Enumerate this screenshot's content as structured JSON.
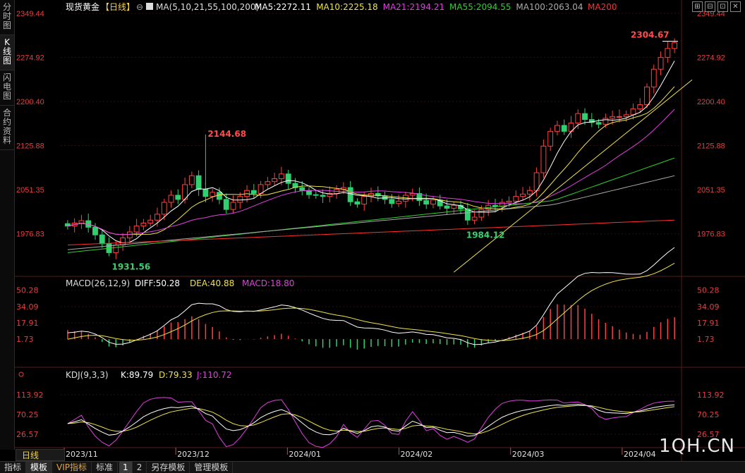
{
  "side_tabs": [
    "分时图",
    "K线图",
    "闪电图",
    "合约资料"
  ],
  "active_side_tab": 1,
  "window_tools": [
    "⊞",
    "⊟",
    "⊡",
    "✕"
  ],
  "header": {
    "symbol": "现货黄金",
    "period": "【日线】",
    "ma_params": "MA(5,10,21,55,100,200)",
    "ma_items": [
      {
        "label": "MA5:2272.11",
        "color": "#ffffff"
      },
      {
        "label": "MA10:2225.18",
        "color": "#f0e24a"
      },
      {
        "label": "MA21:2194.21",
        "color": "#e040e0"
      },
      {
        "label": "MA55:2094.55",
        "color": "#30d030"
      },
      {
        "label": "MA100:2063.04",
        "color": "#aaaaaa"
      },
      {
        "label": "MA200",
        "color": "#ff3030"
      }
    ]
  },
  "price_axis": [
    "2349.44",
    "2274.92",
    "2200.40",
    "2125.88",
    "2051.35",
    "1976.83"
  ],
  "price_annotations": [
    {
      "label": "2304.67",
      "color": "#ff4d4d"
    },
    {
      "label": "2144.68",
      "color": "#ff4d4d"
    },
    {
      "label": "1984.12",
      "color": "#3cd070"
    },
    {
      "label": "1931.56",
      "color": "#3cd070"
    }
  ],
  "macd": {
    "title": "MACD(26,12,9)",
    "diff": "DIFF:50.28",
    "dea": "DEA:40.88",
    "macd": "MACD:18.80",
    "axis": [
      "50.28",
      "34.09",
      "17.91",
      "1.73"
    ]
  },
  "kdj": {
    "title": "KDJ(9,3,3)",
    "k": "K:89.79",
    "d": "D:79.33",
    "j": "J:110.72",
    "axis": [
      "113.92",
      "70.25",
      "26.57"
    ]
  },
  "date_axis": [
    "2023/11",
    "2023/12",
    "2024/01",
    "2024/02",
    "2024/03",
    "2024/04"
  ],
  "period_button": "日线",
  "bottom_tabs": [
    "指标",
    "模板",
    "VIP指标",
    "标准",
    "1",
    "2",
    "另存模板",
    "管理模板"
  ],
  "watermark": "1QH.CN",
  "chart_data": {
    "type": "candlestick",
    "price_range": [
      1905,
      2360
    ],
    "high": 2304.67,
    "high_label_nov": 1931.56,
    "peak_dec": 2144.68,
    "low_feb": 1984.12,
    "closes": [
      1990,
      1995,
      1999,
      1988,
      1975,
      1960,
      1945,
      1958,
      1970,
      1980,
      1990,
      1995,
      2000,
      2010,
      2030,
      2042,
      2035,
      2060,
      2075,
      2052,
      2040,
      2047,
      2035,
      2018,
      2030,
      2040,
      2050,
      2045,
      2060,
      2065,
      2070,
      2078,
      2062,
      2055,
      2050,
      2043,
      2042,
      2040,
      2045,
      2052,
      2055,
      2031,
      2027,
      2040,
      2045,
      2041,
      2035,
      2028,
      2032,
      2042,
      2045,
      2033,
      2027,
      2034,
      2024,
      2020,
      2025,
      2019,
      2000,
      2005,
      2018,
      2025,
      2023,
      2030,
      2032,
      2040,
      2044,
      2050,
      2080,
      2125,
      2150,
      2160,
      2150,
      2164,
      2180,
      2170,
      2165,
      2162,
      2172,
      2175,
      2175,
      2178,
      2188,
      2195,
      2225,
      2255,
      2275,
      2290,
      2300
    ]
  }
}
